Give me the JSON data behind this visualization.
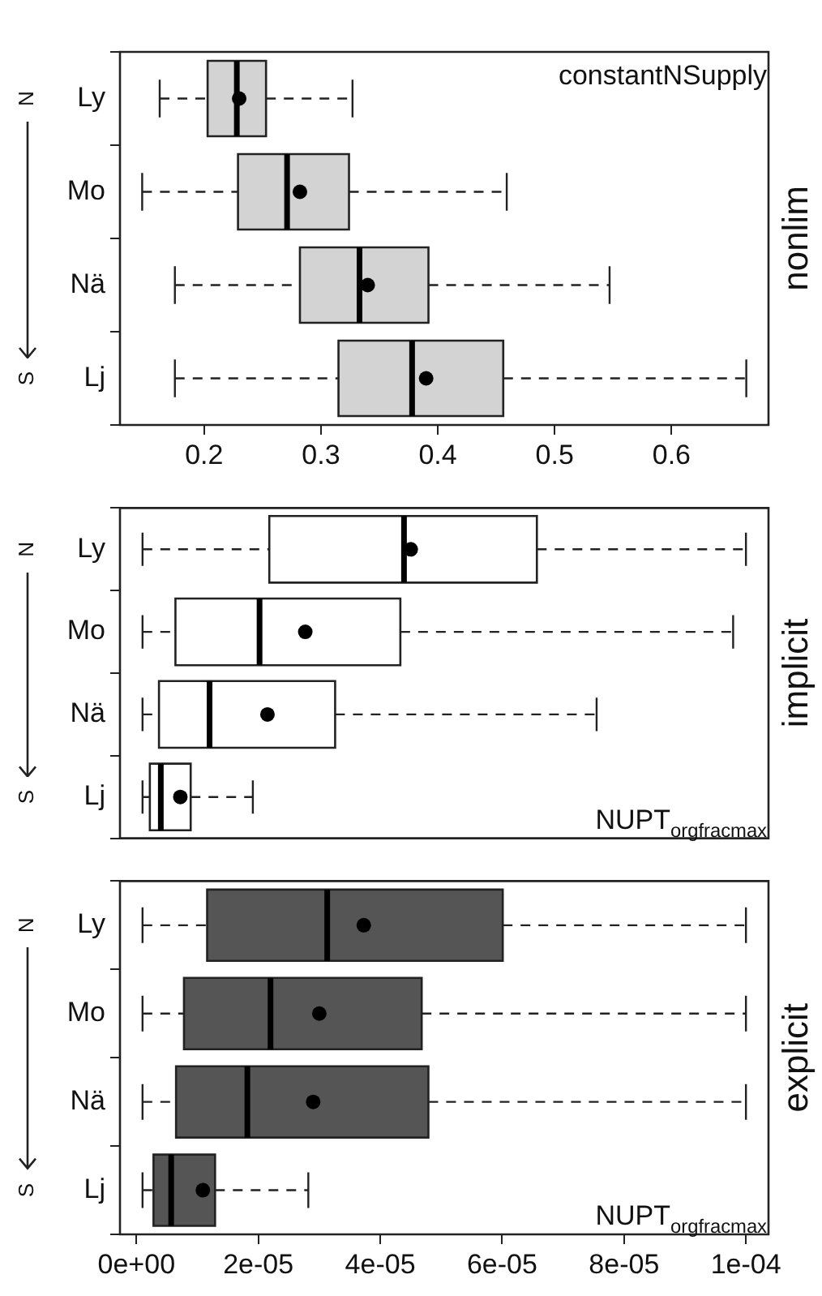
{
  "chart_data": [
    {
      "type": "box",
      "orientation": "horizontal",
      "title": "nonlim",
      "categories": [
        "Ly",
        "Mo",
        "Nä",
        "Lj"
      ],
      "color": "#d3d3d3",
      "xlim": [
        0.128,
        0.683
      ],
      "xticks": [
        0.2,
        0.3,
        0.4,
        0.5,
        0.6
      ],
      "grid": false,
      "legend": false,
      "annotations": [
        "constantNSupply",
        "N",
        "S"
      ],
      "boxes": [
        {
          "low": 0.162,
          "q1": 0.203,
          "median": 0.228,
          "q3": 0.253,
          "high": 0.327,
          "mean": 0.23
        },
        {
          "low": 0.147,
          "q1": 0.229,
          "median": 0.271,
          "q3": 0.324,
          "high": 0.459,
          "mean": 0.282
        },
        {
          "low": 0.175,
          "q1": 0.282,
          "median": 0.333,
          "q3": 0.392,
          "high": 0.547,
          "mean": 0.34
        },
        {
          "low": 0.175,
          "q1": 0.315,
          "median": 0.378,
          "q3": 0.456,
          "high": 0.664,
          "mean": 0.39
        }
      ]
    },
    {
      "type": "box",
      "orientation": "horizontal",
      "title": "implicit",
      "categories": [
        "Ly",
        "Mo",
        "Nä",
        "Lj"
      ],
      "color": "#ffffff",
      "xlim": [
        -2.7e-06,
        0.0001037
      ],
      "tick_labels": "y",
      "grid": false,
      "legend": false,
      "annotations": [
        "NUPT$_{orgfracmax}$",
        "N",
        "S"
      ],
      "boxes": [
        {
          "low": 1e-06,
          "q1": 2.18e-05,
          "median": 4.39e-05,
          "q3": 6.57e-05,
          "high": 0.0001,
          "mean": 4.5e-05
        },
        {
          "low": 1e-06,
          "q1": 6.4e-06,
          "median": 2.02e-05,
          "q3": 4.33e-05,
          "high": 9.79e-05,
          "mean": 2.77e-05
        },
        {
          "low": 1e-06,
          "q1": 3.7e-06,
          "median": 1.2e-05,
          "q3": 3.26e-05,
          "high": 7.55e-05,
          "mean": 2.15e-05
        },
        {
          "low": 1e-06,
          "q1": 2.2e-06,
          "median": 4e-06,
          "q3": 8.9e-06,
          "high": 1.91e-05,
          "mean": 7.2e-06
        }
      ]
    },
    {
      "type": "box",
      "orientation": "horizontal",
      "title": "explicit",
      "categories": [
        "Ly",
        "Mo",
        "Nä",
        "Lj"
      ],
      "color": "#555555",
      "xlim": [
        -2.7e-06,
        0.0001037
      ],
      "xticks": [
        {
          "value": 0,
          "label": "0e+00"
        },
        {
          "value": 2e-05,
          "label": "2e-05"
        },
        {
          "value": 4e-05,
          "label": "4e-05"
        },
        {
          "value": 6e-05,
          "label": "6e-05"
        },
        {
          "value": 8e-05,
          "label": "8e-05"
        },
        {
          "value": 0.0001,
          "label": "1e-04"
        }
      ],
      "grid": false,
      "legend": false,
      "annotations": [
        "NUPT$_{orgfracmax}$",
        "N",
        "S"
      ],
      "boxes": [
        {
          "low": 1e-06,
          "q1": 1.16e-05,
          "median": 3.13e-05,
          "q3": 6.01e-05,
          "high": 0.0001,
          "mean": 3.73e-05
        },
        {
          "low": 1e-06,
          "q1": 7.8e-06,
          "median": 2.2e-05,
          "q3": 4.68e-05,
          "high": 0.0001,
          "mean": 3e-05
        },
        {
          "low": 1e-06,
          "q1": 6.5e-06,
          "median": 1.82e-05,
          "q3": 4.79e-05,
          "high": 0.0001,
          "mean": 2.9e-05
        },
        {
          "low": 1e-06,
          "q1": 2.8e-06,
          "median": 5.7e-06,
          "q3": 1.29e-05,
          "high": 2.82e-05,
          "mean": 1.09e-05
        }
      ]
    }
  ]
}
